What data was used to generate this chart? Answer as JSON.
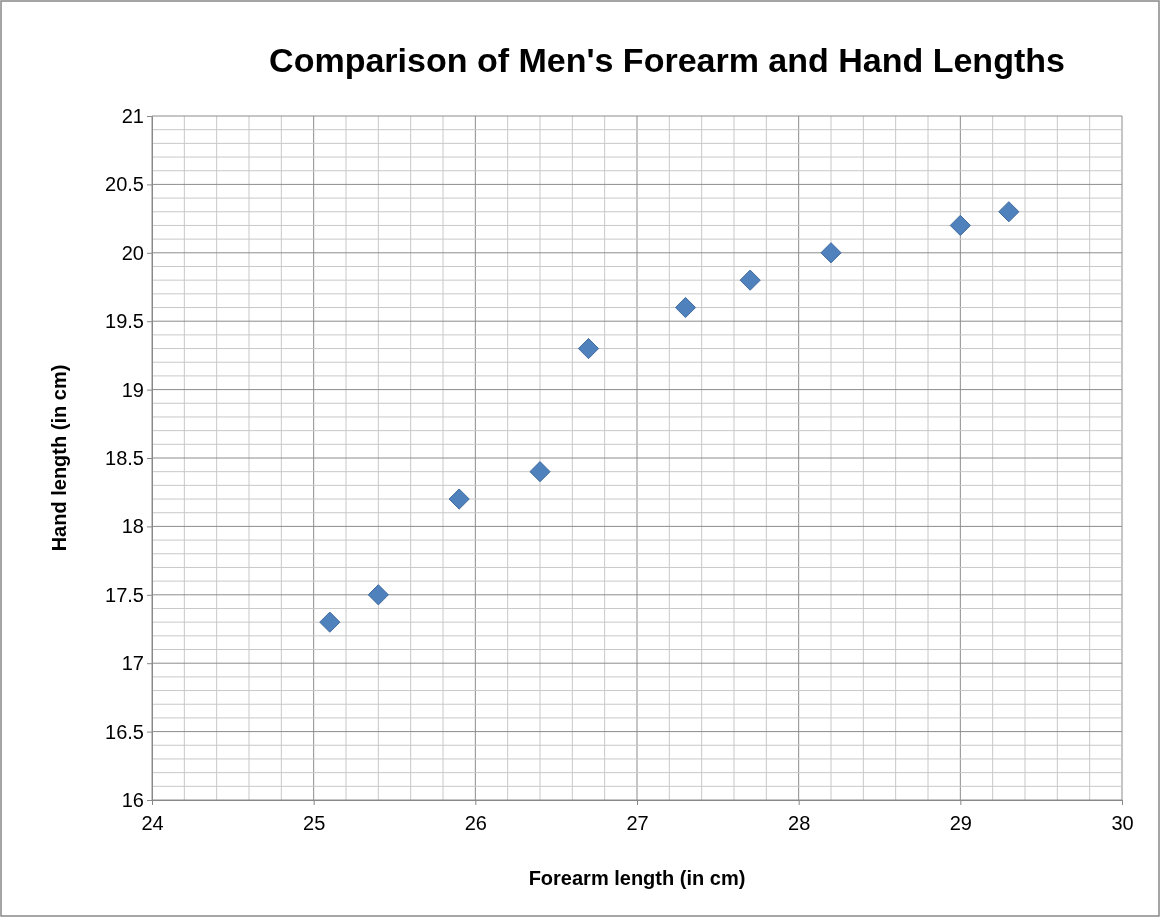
{
  "chart_data": {
    "type": "scatter",
    "title": "Comparison of Men's Forearm and Hand Lengths",
    "xlabel": "Forearm length (in cm)",
    "ylabel": "Hand length (in cm)",
    "x": [
      25.1,
      25.4,
      25.9,
      26.4,
      26.7,
      27.3,
      27.7,
      28.2,
      29.0,
      29.3
    ],
    "series": [
      {
        "color": "#4f81bd",
        "values": [
          17.3,
          17.5,
          18.2,
          18.4,
          19.3,
          19.6,
          19.8,
          20.0,
          20.2,
          20.3
        ]
      }
    ],
    "xlim": [
      24,
      30
    ],
    "xticks": [
      24,
      25,
      26,
      27,
      28,
      29,
      30
    ],
    "ylim": [
      16,
      21
    ],
    "yticks": [
      16,
      16.5,
      17,
      17.5,
      18,
      18.5,
      19,
      19.5,
      20,
      20.5,
      21
    ],
    "grid": true,
    "marker": "diamond"
  }
}
